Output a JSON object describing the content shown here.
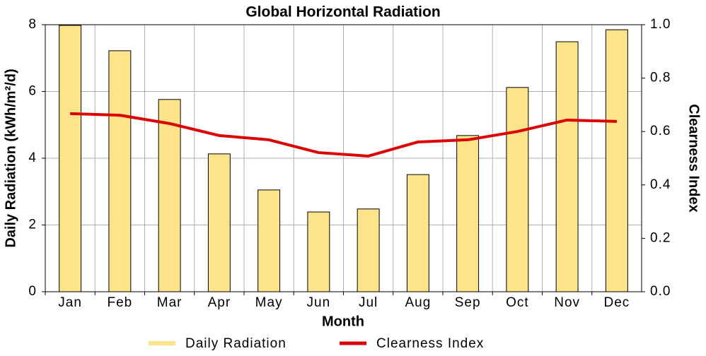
{
  "chart_data": {
    "type": "bar",
    "title": "Global Horizontal Radiation",
    "x_label": "Month",
    "y_label": "Daily Radiation (kWh/m²/d)",
    "y2_label": "Clearness Index",
    "categories": [
      "Jan",
      "Feb",
      "Mar",
      "Apr",
      "May",
      "Jun",
      "Jul",
      "Aug",
      "Sep",
      "Oct",
      "Nov",
      "Dec"
    ],
    "series": [
      {
        "name": "Daily Radiation",
        "type": "bar",
        "color": "#fde38a",
        "values": [
          7.98,
          7.22,
          5.76,
          4.13,
          3.05,
          2.39,
          2.48,
          3.51,
          4.68,
          6.12,
          7.49,
          7.85
        ]
      },
      {
        "name": "Clearness Index",
        "type": "line",
        "axis": "y2",
        "color": "#dd0000",
        "values": [
          0.667,
          0.661,
          0.63,
          0.585,
          0.569,
          0.521,
          0.508,
          0.561,
          0.569,
          0.6,
          0.643,
          0.638
        ]
      }
    ],
    "ylim": [
      0,
      8
    ],
    "yticks": [
      0,
      2,
      4,
      6,
      8
    ],
    "y2lim": [
      0,
      1
    ],
    "y2ticks": [
      {
        "value": 0,
        "label": "0.0"
      },
      0.2,
      0.4,
      0.6,
      0.8,
      {
        "value": 1,
        "label": "1.0"
      }
    ],
    "grid": true,
    "legend": "bottom"
  }
}
